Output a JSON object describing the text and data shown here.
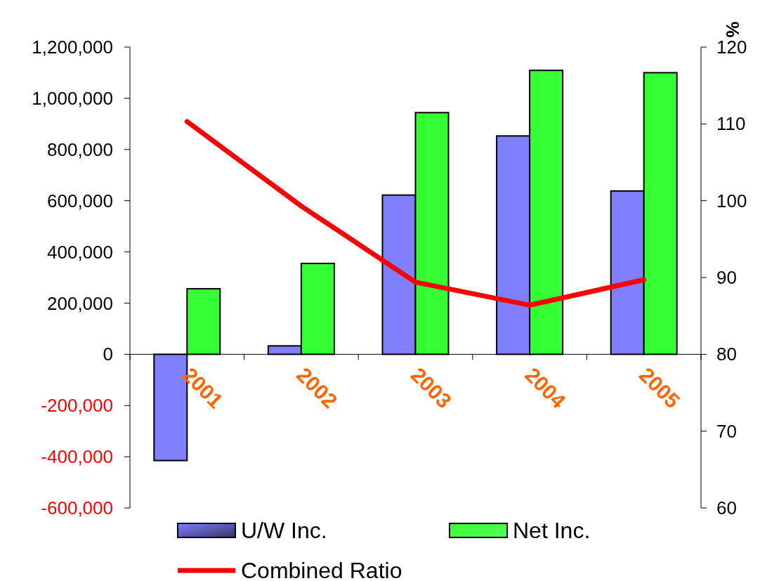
{
  "chart_data": {
    "type": "bar",
    "categories": [
      "2001",
      "2002",
      "2003",
      "2004",
      "2005"
    ],
    "series": [
      {
        "name": "U/W Inc.",
        "color": "#8080ff",
        "values": [
          -415000,
          33000,
          622000,
          853000,
          638000
        ]
      },
      {
        "name": "Net Inc.",
        "color": "#33ff33",
        "values": [
          256000,
          355000,
          944000,
          1109000,
          1100000
        ]
      },
      {
        "name": "Combined Ratio",
        "type": "line",
        "axis": "y2",
        "color": "#ff0000",
        "values": [
          110.3,
          99.3,
          89.4,
          86.4,
          89.7
        ]
      }
    ],
    "ylim": [
      -600000,
      1200000
    ],
    "yticks": [
      {
        "value": -600000,
        "label": "-600,000"
      },
      {
        "value": -400000,
        "label": "-400,000"
      },
      {
        "value": -200000,
        "label": "-200,000"
      },
      {
        "value": 0,
        "label": "0"
      },
      {
        "value": 200000,
        "label": "200,000"
      },
      {
        "value": 400000,
        "label": "400,000"
      },
      {
        "value": 600000,
        "label": "600,000"
      },
      {
        "value": 800000,
        "label": "800,000"
      },
      {
        "value": 1000000,
        "label": "1,000,000"
      },
      {
        "value": 1200000,
        "label": "1,200,000"
      }
    ],
    "y2lim": [
      60,
      120
    ],
    "y2ticks": [
      60,
      70,
      80,
      90,
      100,
      110,
      120
    ],
    "y2label": "%",
    "legend": "bottom",
    "grid": false
  }
}
